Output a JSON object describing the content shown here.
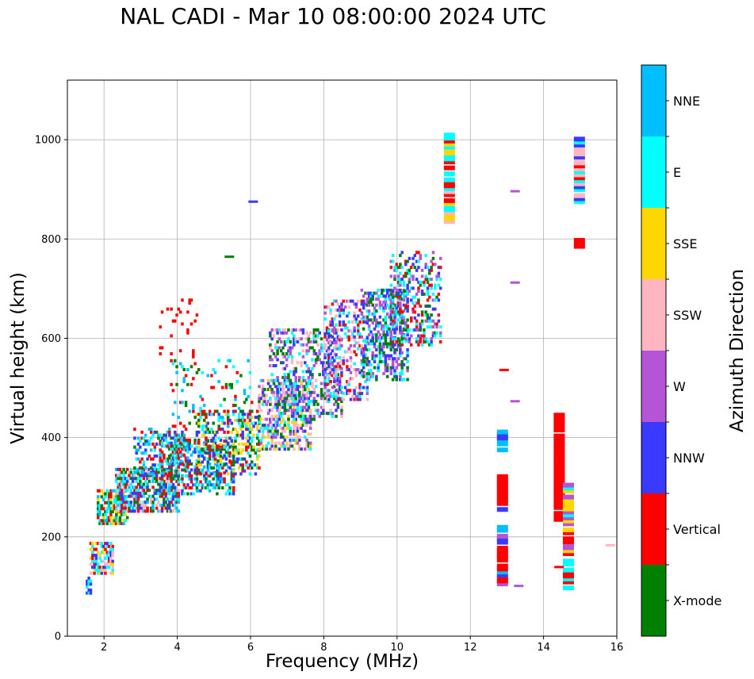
{
  "chart_data": {
    "type": "scatter",
    "title": "NAL CADI - Mar 10 08:00:00 2024 UTC",
    "xlabel": "Frequency (MHz)",
    "ylabel": "Virtual height (km)",
    "xlim": [
      1,
      16
    ],
    "ylim": [
      0,
      1120
    ],
    "xticks": [
      2,
      4,
      6,
      8,
      10,
      12,
      14,
      16
    ],
    "yticks": [
      0,
      200,
      400,
      600,
      800,
      1000
    ],
    "grid": true,
    "colorbar": {
      "label": "Azimuth Direction",
      "categories": [
        "X-mode",
        "Vertical",
        "NNW",
        "W",
        "SSW",
        "SSE",
        "E",
        "NNE"
      ],
      "colors": [
        "#008000",
        "#ff0000",
        "#3a3aff",
        "#b455d6",
        "#ffb6c1",
        "#ffd700",
        "#00ffff",
        "#00bfff"
      ]
    },
    "bands": [
      {
        "x": [
          1.5,
          1.65
        ],
        "y": [
          90,
          120
        ],
        "mix": [
          6,
          2
        ],
        "density": 0.7
      },
      {
        "x": [
          1.6,
          2.2
        ],
        "y": [
          130,
          190
        ],
        "mix": [
          5,
          2,
          1,
          6,
          4
        ],
        "density": 0.55
      },
      {
        "x": [
          1.8,
          2.6
        ],
        "y": [
          230,
          300
        ],
        "mix": [
          6,
          1,
          7,
          0,
          5
        ],
        "density": 0.6
      },
      {
        "x": [
          2.3,
          4.0
        ],
        "y": [
          255,
          340
        ],
        "mix": [
          1,
          7,
          2,
          4,
          6,
          0
        ],
        "density": 0.65
      },
      {
        "x": [
          2.8,
          4.2
        ],
        "y": [
          330,
          420
        ],
        "mix": [
          7,
          6,
          2,
          0,
          1
        ],
        "density": 0.35
      },
      {
        "x": [
          3.5,
          5.5
        ],
        "y": [
          290,
          400
        ],
        "mix": [
          0,
          1,
          6,
          2,
          7
        ],
        "density": 0.45
      },
      {
        "x": [
          4.5,
          6.2
        ],
        "y": [
          330,
          460
        ],
        "mix": [
          0,
          6,
          2,
          5,
          1
        ],
        "density": 0.4
      },
      {
        "x": [
          3.8,
          6.0
        ],
        "y": [
          420,
          560
        ],
        "mix": [
          0,
          6,
          7,
          1
        ],
        "density": 0.1
      },
      {
        "x": [
          6.2,
          7.6
        ],
        "y": [
          380,
          520
        ],
        "mix": [
          4,
          3,
          5,
          2,
          0,
          6
        ],
        "density": 0.45
      },
      {
        "x": [
          6.5,
          8.5
        ],
        "y": [
          440,
          620
        ],
        "mix": [
          3,
          2,
          4,
          6,
          0
        ],
        "density": 0.35
      },
      {
        "x": [
          8.0,
          9.2
        ],
        "y": [
          480,
          680
        ],
        "mix": [
          2,
          3,
          6,
          4,
          1
        ],
        "density": 0.35
      },
      {
        "x": [
          9.0,
          10.3
        ],
        "y": [
          520,
          700
        ],
        "mix": [
          6,
          0,
          2,
          3
        ],
        "density": 0.45
      },
      {
        "x": [
          9.8,
          11.2
        ],
        "y": [
          590,
          780
        ],
        "mix": [
          0,
          6,
          1,
          3,
          2
        ],
        "density": 0.3
      },
      {
        "x": [
          3.5,
          4.5
        ],
        "y": [
          560,
          680
        ],
        "mix": [
          1
        ],
        "density": 0.06
      }
    ],
    "columns": [
      {
        "x": 11.45,
        "y": [
          840,
          1015
        ],
        "colors": [
          5,
          6,
          4,
          5,
          1,
          6
        ]
      },
      {
        "x": 12.9,
        "y": [
          110,
          230
        ],
        "colors": [
          1,
          2,
          3,
          7,
          2,
          1
        ]
      },
      {
        "x": 12.9,
        "y": [
          260,
          330
        ],
        "colors": [
          1,
          2,
          1
        ]
      },
      {
        "x": 12.9,
        "y": [
          380,
          420
        ],
        "colors": [
          2,
          7
        ]
      },
      {
        "x": 14.45,
        "y": [
          240,
          410
        ],
        "colors": [
          1
        ]
      },
      {
        "x": 14.45,
        "y": [
          420,
          455
        ],
        "colors": [
          1
        ]
      },
      {
        "x": 14.7,
        "y": [
          90,
          160
        ],
        "colors": [
          6,
          1
        ]
      },
      {
        "x": 14.7,
        "y": [
          165,
          310
        ],
        "colors": [
          6,
          1,
          5,
          3
        ]
      },
      {
        "x": 15.0,
        "y": [
          880,
          1010
        ],
        "colors": [
          1,
          6,
          4,
          2
        ]
      },
      {
        "x": 15.0,
        "y": [
          790,
          805
        ],
        "colors": [
          1
        ]
      }
    ],
    "spots": [
      {
        "x": 12.9,
        "y": 537,
        "c": 1
      },
      {
        "x": 13.2,
        "y": 897,
        "c": 3
      },
      {
        "x": 13.2,
        "y": 713,
        "c": 3
      },
      {
        "x": 13.2,
        "y": 474,
        "c": 3
      },
      {
        "x": 13.3,
        "y": 102,
        "c": 3
      },
      {
        "x": 14.4,
        "y": 140,
        "c": 1
      },
      {
        "x": 15.8,
        "y": 184,
        "c": 4
      },
      {
        "x": 6.05,
        "y": 876,
        "c": 2
      },
      {
        "x": 5.4,
        "y": 765,
        "c": 0
      }
    ]
  }
}
